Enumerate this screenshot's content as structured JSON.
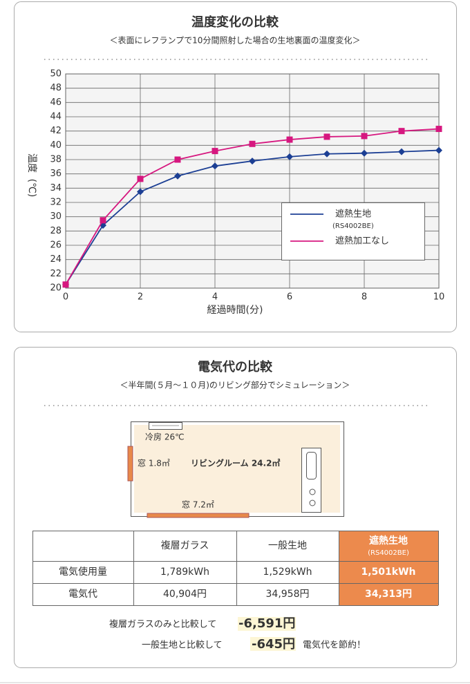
{
  "chart_data": {
    "type": "line",
    "title": "温度変化の比較",
    "subtitle": "＜表面にレフランプで10分間照射した場合の生地裏面の温度変化＞",
    "y_label": [
      "温度",
      "(℃)"
    ],
    "x_label": "経過時間(分)",
    "x": [
      0,
      1,
      2,
      3,
      4,
      5,
      6,
      7,
      8,
      9,
      10
    ],
    "series": [
      {
        "name": "遮熱生地",
        "subname": "(RS4002BE)",
        "color": "#1c3f94",
        "marker": "diamond",
        "values": [
          20.5,
          28.8,
          33.5,
          35.7,
          37.1,
          37.8,
          38.4,
          38.8,
          38.9,
          39.1,
          39.3
        ]
      },
      {
        "name": "遮熱加工なし",
        "color": "#d6177f",
        "marker": "square",
        "values": [
          20.5,
          29.5,
          35.3,
          38.0,
          39.2,
          40.2,
          40.8,
          41.2,
          41.3,
          42.0,
          42.3
        ]
      }
    ],
    "xlim": [
      0,
      10
    ],
    "ylim": [
      20,
      50
    ],
    "xticks": [
      0,
      2,
      4,
      6,
      8,
      10
    ],
    "yticks": [
      20,
      22,
      24,
      26,
      28,
      30,
      32,
      34,
      36,
      38,
      40,
      42,
      44,
      46,
      48,
      50
    ],
    "grid": true
  },
  "comparison": {
    "title": "電気代の比較",
    "subtitle": "＜半年間(５月～１０月)のリビング部分でシミュレーション＞",
    "room": {
      "ac": "冷房 26℃",
      "window_small": "窓 1.8㎡",
      "room": "リビングルーム 24.2㎡",
      "window_large": "窓 7.2㎡"
    },
    "table": {
      "columns": [
        "複層ガラス",
        "一般生地",
        "遮熱生地"
      ],
      "highlight_sub": "(RS4002BE)",
      "rows": [
        {
          "label": "電気使用量",
          "cells": [
            "1,789kWh",
            "1,529kWh",
            "1,501kWh"
          ]
        },
        {
          "label": "電気代",
          "cells": [
            "40,904円",
            "34,958円",
            "34,313円"
          ]
        }
      ]
    },
    "summary": [
      {
        "text": "複層ガラスのみと比較して",
        "amount": "-6,591円"
      },
      {
        "text": "一般生地と比較して",
        "amount": "-645円",
        "tail": "電気代を節約！"
      }
    ]
  }
}
